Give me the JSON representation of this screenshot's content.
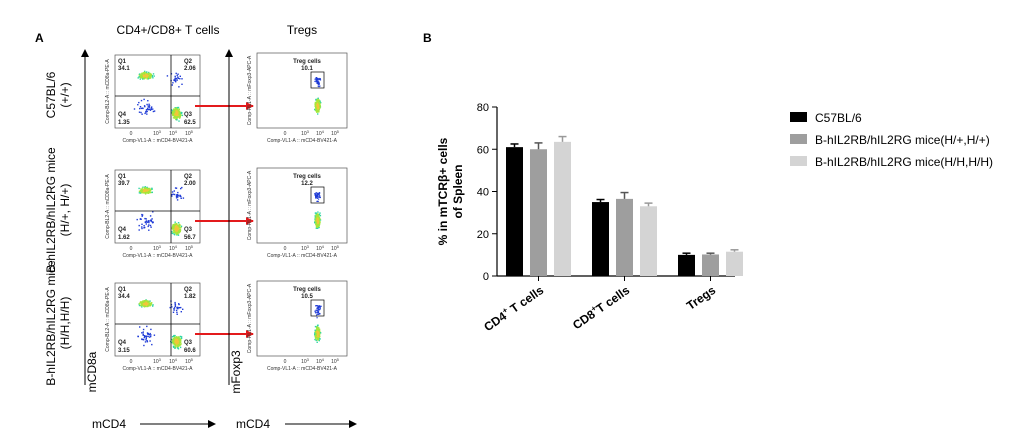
{
  "panel_a": {
    "letter": "A",
    "col_titles": [
      "CD4+/CD8+ T cells",
      "Tregs"
    ],
    "rows": [
      {
        "label_lines": [
          "C57BL/6",
          "(+/+)"
        ],
        "quad": {
          "q1": "34.1",
          "q2": "2.06",
          "q3": "62.5",
          "q4": "1.35"
        },
        "treg": "10.1"
      },
      {
        "label_lines": [
          "B-hIL2RB/hIL2RG mice",
          "(H/+, H/+)"
        ],
        "quad": {
          "q1": "39.7",
          "q2": "2.00",
          "q3": "56.7",
          "q4": "1.62"
        },
        "treg": "12.2"
      },
      {
        "label_lines": [
          "B-hIL2RB/hIL2RG mice",
          "(H/H,H/H)"
        ],
        "quad": {
          "q1": "34.4",
          "q2": "1.82",
          "q3": "60.6",
          "q4": "3.15"
        },
        "treg": "10.5"
      }
    ],
    "quad_names": {
      "q1": "Q1",
      "q2": "Q2",
      "q3": "Q3",
      "q4": "Q4"
    },
    "treg_gate_name": "Treg cells",
    "left_axis_x": "Comp-VL1-A :: mCD4-BV421-A",
    "left_axis_y": "Comp-BL2-A :: mCD8a-PE-A",
    "right_axis_y": "Comp-RL1-A :: mFoxp3-APC-A",
    "tick_labels": [
      "0",
      "10",
      "10",
      "10"
    ],
    "tick_exps": [
      "3",
      "4",
      "5"
    ],
    "bottom_label_1": "mCD4",
    "bottom_label_2": "mCD4",
    "side_label_1": "mCD8a",
    "side_label_2": "mFoxp3",
    "colors": {
      "arrow": "#e31a1c"
    }
  },
  "panel_b": {
    "letter": "B",
    "legend": [
      {
        "label": "C57BL/6",
        "color": "#000000"
      },
      {
        "label": "B-hIL2RB/hIL2RG mice(H/+,H/+)",
        "color": "#9e9e9e"
      },
      {
        "label": "B-hIL2RB/hIL2RG mice(H/H,H/H)",
        "color": "#d4d4d4"
      }
    ]
  },
  "chart_data": {
    "type": "bar",
    "categories": [
      "CD4+ T cells",
      "CD8+ T cells",
      "Tregs"
    ],
    "category_labels": [
      {
        "pre": "CD4",
        "sup": "+",
        "post": " T cells"
      },
      {
        "pre": "CD8",
        "sup": "+",
        "post": "T cells"
      },
      {
        "pre": "Tregs",
        "sup": "",
        "post": ""
      }
    ],
    "series": [
      {
        "name": "C57BL/6",
        "values": [
          61,
          35,
          10
        ],
        "errors": [
          1.5,
          1.2,
          0.8
        ]
      },
      {
        "name": "B-hIL2RB/hIL2RG mice(H/+,H/+)",
        "values": [
          60,
          36.5,
          10.2
        ],
        "errors": [
          3.0,
          3.0,
          0.6
        ]
      },
      {
        "name": "B-hIL2RB/hIL2RG mice(H/H,H/H)",
        "values": [
          63.5,
          33,
          11.5
        ],
        "errors": [
          2.5,
          1.5,
          0.9
        ]
      }
    ],
    "ylabel_lines": [
      "% in mTCRβ+ cells",
      "of Spleen"
    ],
    "ylim": [
      0,
      80
    ],
    "yticks": [
      0,
      20,
      40,
      60,
      80
    ]
  }
}
